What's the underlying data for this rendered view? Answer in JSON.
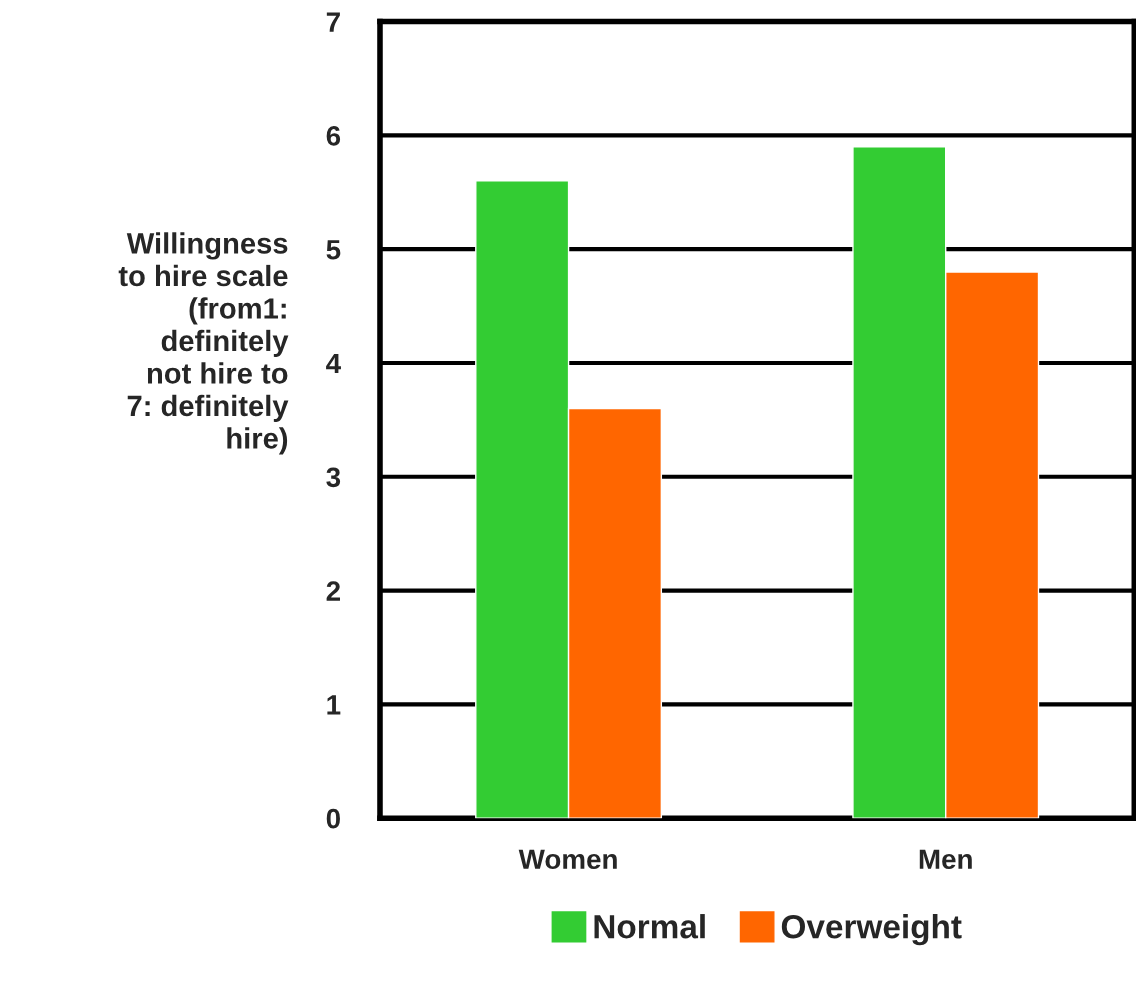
{
  "chart_data": {
    "type": "bar",
    "ylabel": "Willingness\nto hire scale\n(from1:\ndefinitely\nnot hire to\n7: definitely\nhire)",
    "categories": [
      "Women",
      "Men"
    ],
    "series": [
      {
        "name": "Normal",
        "color": "#33cc33",
        "values": [
          5.6,
          5.9
        ]
      },
      {
        "name": "Overweight",
        "color": "#ff6600",
        "values": [
          3.6,
          4.8
        ]
      }
    ],
    "ylim": [
      0,
      7
    ],
    "yticks": [
      0,
      1,
      2,
      3,
      4,
      5,
      6,
      7
    ],
    "grid": "y",
    "legend": "bottom"
  }
}
